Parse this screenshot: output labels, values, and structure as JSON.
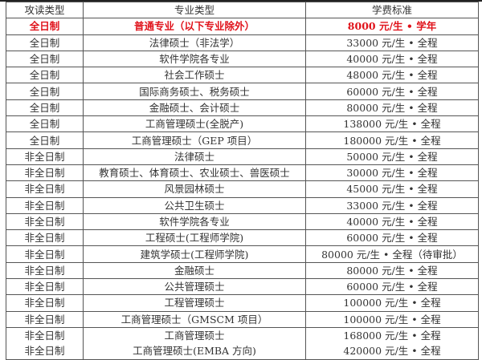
{
  "headers": [
    "攻读类型",
    "专业类型",
    "学费标准"
  ],
  "highlight_color": "#e0131b",
  "rows": [
    {
      "type": "全日制",
      "major": "普通专业（以下专业除外）",
      "fee": "8000 元/生 • 学年",
      "highlight": true
    },
    {
      "type": "全日制",
      "major": "法律硕士（非法学）",
      "fee": "33000 元/生 • 全程"
    },
    {
      "type": "全日制",
      "major": "软件学院各专业",
      "fee": "40000 元/生 • 全程"
    },
    {
      "type": "全日制",
      "major": "社会工作硕士",
      "fee": "48000 元/生 • 全程"
    },
    {
      "type": "全日制",
      "major": "国际商务硕士、税务硕士",
      "fee": "60000 元/生 • 全程"
    },
    {
      "type": "全日制",
      "major": "金融硕士、会计硕士",
      "fee": "80000 元/生 • 全程"
    },
    {
      "type": "全日制",
      "major": "工商管理硕士(全脱产)",
      "fee": "138000 元/生 • 全程"
    },
    {
      "type": "全日制",
      "major": "工商管理硕士（GEP 项目）",
      "fee": "180000 元/生 • 全程"
    },
    {
      "type": "非全日制",
      "major": "法律硕士",
      "fee": "50000 元/生 • 全程"
    },
    {
      "type": "非全日制",
      "major": "教育硕士、体育硕士、农业硕士、兽医硕士",
      "fee": "30000 元/生 • 全程"
    },
    {
      "type": "非全日制",
      "major": "风景园林硕士",
      "fee": "45000 元/生 • 全程"
    },
    {
      "type": "非全日制",
      "major": "公共卫生硕士",
      "fee": "33000 元/生 • 全程"
    },
    {
      "type": "非全日制",
      "major": "软件学院各专业",
      "fee": "40000 元/生 • 全程"
    },
    {
      "type": "非全日制",
      "major": "工程硕士(工程师学院)",
      "fee": "60000 元/生 • 全程"
    },
    {
      "type": "非全日制",
      "major": "建筑学硕士(工程师学院)",
      "fee": "80000 元/生 • 全程（待审批）"
    },
    {
      "type": "非全日制",
      "major": "金融硕士",
      "fee": "80000 元/生 • 全程"
    },
    {
      "type": "非全日制",
      "major": "公共管理硕士",
      "fee": "60000 元/生 • 全程"
    },
    {
      "type": "非全日制",
      "major": "工程管理硕士",
      "fee": "100000 元/生 • 全程"
    },
    {
      "type": "非全日制",
      "major": "工商管理硕士（GMSCM 项目）",
      "fee": "100000 元/生 • 全程"
    },
    {
      "type": "非全日制",
      "major": "工商管理硕士",
      "fee": "168000 元/生 • 全程"
    },
    {
      "type": "非全日制",
      "major": "工商管理硕士(EMBA 方向)",
      "fee": "420000 元/生 • 全程"
    }
  ]
}
